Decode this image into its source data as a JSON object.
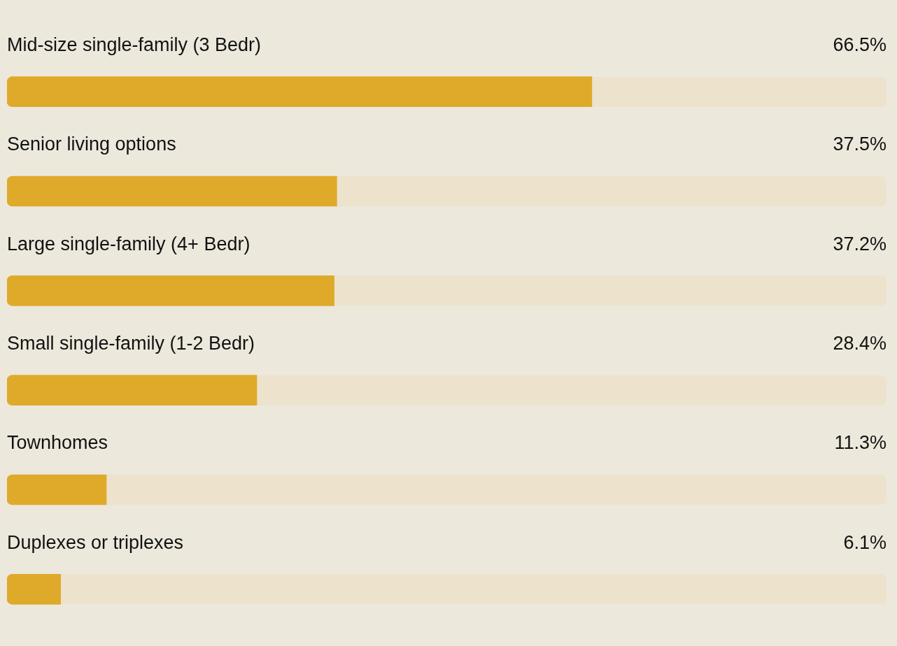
{
  "chart_data": {
    "type": "bar",
    "orientation": "horizontal",
    "categories": [
      "Mid-size single-family (3 Bedr)",
      "Senior living options",
      "Large single-family (4+ Bedr)",
      "Small single-family (1-2 Bedr)",
      "Townhomes",
      "Duplexes or triplexes"
    ],
    "values": [
      66.5,
      37.5,
      37.2,
      28.4,
      11.3,
      6.1
    ],
    "value_labels": [
      "66.5%",
      "37.5%",
      "37.2%",
      "28.4%",
      "11.3%",
      "6.1%"
    ],
    "color": "#dfaa2a",
    "xlim": [
      0,
      100
    ]
  }
}
